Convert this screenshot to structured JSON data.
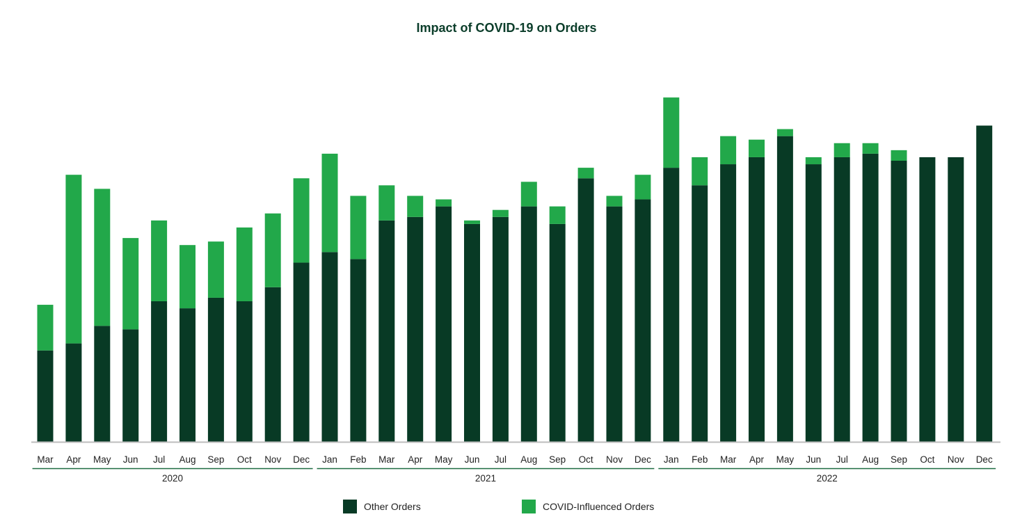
{
  "title": "Impact of COVID-19 on Orders",
  "colors": {
    "other": "#083a25",
    "covid": "#22a84a",
    "axis": "#bdbdbd",
    "year_rule": "#1d6b40"
  },
  "legend": {
    "other_label": "Other Orders",
    "covid_label": "COVID-Influenced Orders"
  },
  "chart_data": {
    "type": "bar",
    "stacked": true,
    "years": [
      {
        "label": "2020",
        "start": 0,
        "end": 9
      },
      {
        "label": "2021",
        "start": 10,
        "end": 21
      },
      {
        "label": "2022",
        "start": 22,
        "end": 33
      }
    ],
    "categories": [
      "Mar",
      "Apr",
      "May",
      "Jun",
      "Jul",
      "Aug",
      "Sep",
      "Oct",
      "Nov",
      "Dec",
      "Jan",
      "Feb",
      "Mar",
      "Apr",
      "May",
      "Jun",
      "Jul",
      "Aug",
      "Sep",
      "Oct",
      "Nov",
      "Dec",
      "Jan",
      "Feb",
      "Mar",
      "Apr",
      "May",
      "Jun",
      "Jul",
      "Aug",
      "Sep",
      "Oct",
      "Nov",
      "Dec"
    ],
    "series": [
      {
        "name": "Other Orders",
        "values": [
          26,
          28,
          33,
          32,
          40,
          38,
          41,
          40,
          44,
          51,
          54,
          52,
          63,
          64,
          67,
          62,
          64,
          67,
          62,
          75,
          67,
          69,
          78,
          73,
          79,
          81,
          87,
          79,
          81,
          82,
          80,
          81,
          81,
          90
        ]
      },
      {
        "name": "COVID-Influenced Orders",
        "values": [
          13,
          48,
          39,
          26,
          23,
          18,
          16,
          21,
          21,
          24,
          28,
          18,
          10,
          6,
          2,
          1,
          2,
          7,
          5,
          3,
          3,
          7,
          20,
          8,
          8,
          5,
          2,
          2,
          4,
          3,
          3,
          0,
          0,
          0
        ]
      }
    ],
    "ylim": [
      0,
      100
    ],
    "xlabel": "",
    "ylabel": "",
    "grid": false,
    "legend_position": "bottom"
  }
}
